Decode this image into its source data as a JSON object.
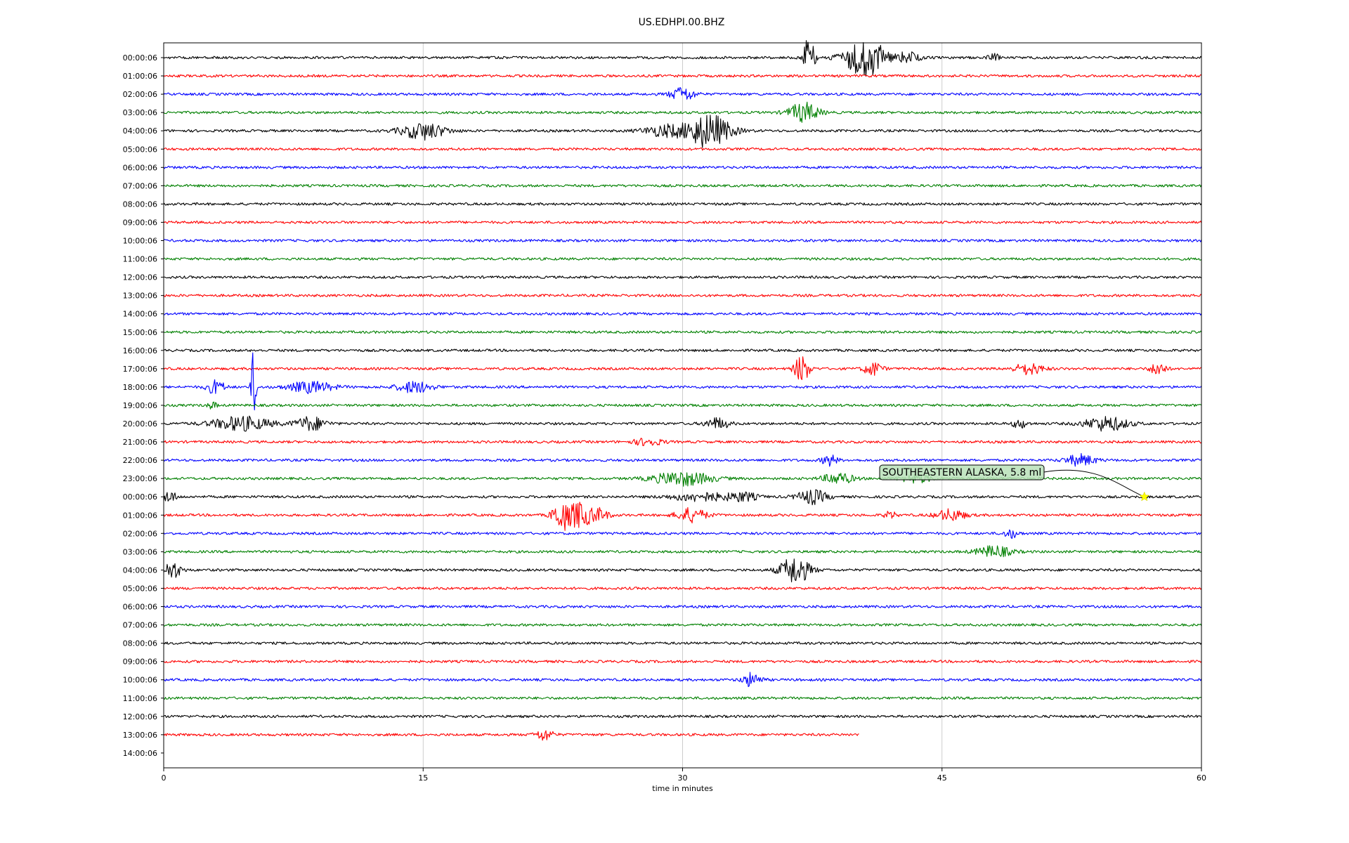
{
  "chart_data": {
    "type": "line",
    "title": "US.EDHPI.00.BHZ",
    "xlabel": "time in minutes",
    "xlim": [
      0,
      60
    ],
    "x_ticks": [
      0,
      15,
      30,
      45,
      60
    ],
    "x_tick_labels": [
      "0",
      "15",
      "30",
      "45",
      "60"
    ],
    "grid": "vertical",
    "trace_colors": [
      "#000000",
      "#ff0000",
      "#0000ff",
      "#008000"
    ],
    "row_labels": [
      "00:00:06",
      "01:00:06",
      "02:00:06",
      "03:00:06",
      "04:00:06",
      "05:00:06",
      "06:00:06",
      "07:00:06",
      "08:00:06",
      "09:00:06",
      "10:00:06",
      "11:00:06",
      "12:00:06",
      "13:00:06",
      "14:00:06",
      "15:00:06",
      "16:00:06",
      "17:00:06",
      "18:00:06",
      "19:00:06",
      "20:00:06",
      "21:00:06",
      "22:00:06",
      "23:00:06",
      "00:00:06",
      "01:00:06",
      "02:00:06",
      "03:00:06",
      "04:00:06",
      "05:00:06",
      "06:00:06",
      "07:00:06",
      "08:00:06",
      "09:00:06",
      "10:00:06",
      "11:00:06",
      "12:00:06",
      "13:00:06",
      "14:00:06"
    ],
    "rows": [
      {
        "end": 60,
        "events": [
          [
            37.3,
            28,
            0.4
          ],
          [
            40.3,
            22,
            1.3
          ],
          [
            41.2,
            10,
            0.8
          ],
          [
            43,
            8,
            0.8
          ],
          [
            48,
            5,
            0.4
          ]
        ]
      },
      {
        "end": 60,
        "events": []
      },
      {
        "end": 60,
        "events": [
          [
            30,
            10,
            0.8
          ]
        ]
      },
      {
        "end": 60,
        "events": [
          [
            37,
            14,
            1
          ]
        ]
      },
      {
        "end": 60,
        "events": [
          [
            15,
            12,
            1.5
          ],
          [
            31.5,
            24,
            1.5
          ],
          [
            29,
            8,
            1.5
          ]
        ]
      },
      {
        "end": 60,
        "events": []
      },
      {
        "end": 60,
        "events": []
      },
      {
        "end": 60,
        "events": []
      },
      {
        "end": 60,
        "events": []
      },
      {
        "end": 60,
        "events": []
      },
      {
        "end": 60,
        "events": []
      },
      {
        "end": 60,
        "events": []
      },
      {
        "end": 60,
        "events": []
      },
      {
        "end": 60,
        "events": []
      },
      {
        "end": 60,
        "events": []
      },
      {
        "end": 60,
        "events": []
      },
      {
        "end": 60,
        "events": []
      },
      {
        "end": 60,
        "events": [
          [
            36.9,
            20,
            0.5
          ],
          [
            41,
            10,
            0.6
          ],
          [
            50,
            8,
            1
          ],
          [
            57.5,
            10,
            0.5
          ]
        ]
      },
      {
        "end": 60,
        "events": [
          [
            5.2,
            60,
            0.15
          ],
          [
            3,
            10,
            0.6
          ],
          [
            8.5,
            8,
            1.5
          ],
          [
            14.5,
            8,
            1.2
          ]
        ]
      },
      {
        "end": 60,
        "events": [
          [
            2.8,
            5,
            0.3
          ]
        ]
      },
      {
        "end": 60,
        "events": [
          [
            4.5,
            10,
            2
          ],
          [
            8.5,
            10,
            1
          ],
          [
            32,
            8,
            0.8
          ],
          [
            54.5,
            10,
            1.5
          ],
          [
            49.5,
            6,
            0.5
          ]
        ]
      },
      {
        "end": 60,
        "events": [
          [
            28,
            5,
            1
          ]
        ]
      },
      {
        "end": 60,
        "events": [
          [
            38.5,
            8,
            0.5
          ],
          [
            53,
            8,
            1
          ]
        ]
      },
      {
        "end": 60,
        "events": [
          [
            30,
            10,
            2
          ],
          [
            39,
            8,
            1
          ],
          [
            43.5,
            6,
            1
          ]
        ]
      },
      {
        "end": 60,
        "events": [
          [
            0.3,
            8,
            0.5
          ],
          [
            37.5,
            10,
            1
          ],
          [
            31,
            6,
            2
          ],
          [
            33.5,
            6,
            1
          ]
        ]
      },
      {
        "end": 60,
        "events": [
          [
            23,
            22,
            0.6
          ],
          [
            24,
            18,
            0.6
          ],
          [
            25,
            10,
            0.8
          ],
          [
            30.5,
            10,
            1
          ],
          [
            45.5,
            8,
            1
          ],
          [
            42,
            5,
            0.4
          ]
        ]
      },
      {
        "end": 60,
        "events": [
          [
            49,
            6,
            0.5
          ]
        ]
      },
      {
        "end": 60,
        "events": [
          [
            48,
            8,
            1.2
          ]
        ]
      },
      {
        "end": 60,
        "events": [
          [
            36.5,
            20,
            1
          ],
          [
            0.5,
            12,
            0.6
          ]
        ]
      },
      {
        "end": 60,
        "events": []
      },
      {
        "end": 60,
        "events": []
      },
      {
        "end": 60,
        "events": []
      },
      {
        "end": 60,
        "events": []
      },
      {
        "end": 60,
        "events": []
      },
      {
        "end": 60,
        "events": [
          [
            34,
            10,
            0.6
          ]
        ]
      },
      {
        "end": 60,
        "events": []
      },
      {
        "end": 60,
        "events": []
      },
      {
        "end": 40.2,
        "events": [
          [
            22,
            8,
            0.6
          ]
        ]
      },
      {
        "end": 0,
        "events": []
      }
    ],
    "annotations": [
      {
        "text": "SOUTHEASTERN ALASKA, 5.8 ml",
        "row": 24,
        "x": 56.7,
        "marker": "star",
        "marker_color": "#ffff00"
      }
    ]
  }
}
